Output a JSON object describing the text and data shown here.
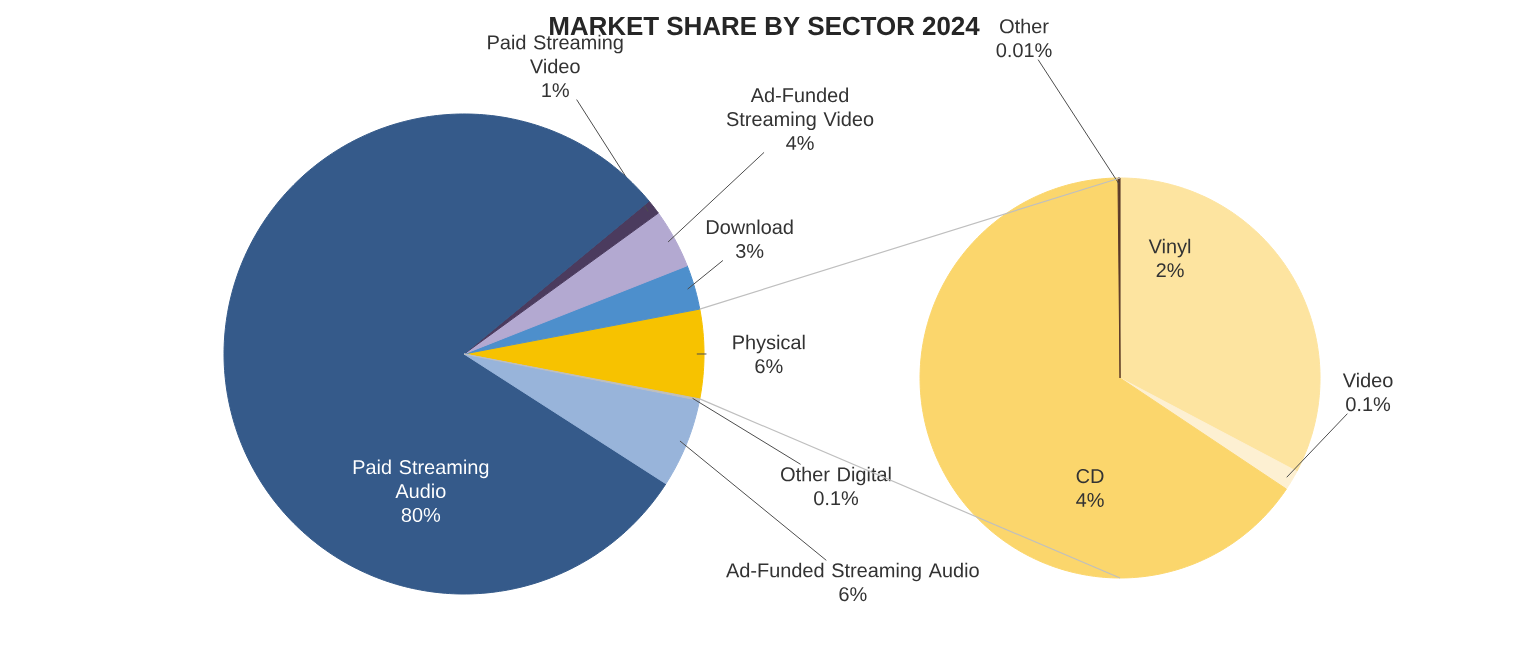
{
  "chart_data": [
    {
      "type": "pie",
      "title": "MARKET SHARE BY SECTOR 2024",
      "categories": [
        "Physical",
        "Download",
        "Ad-Funded Streaming Video",
        "Paid Streaming Video",
        "Paid Streaming Audio",
        "Ad-Funded Streaming Audio",
        "Other Digital"
      ],
      "values": [
        6,
        3,
        4,
        1,
        80,
        6,
        0.1
      ],
      "colors": [
        "#f7c200",
        "#4d8fcc",
        "#b3a9d1",
        "#4b3b5e",
        "#355a8a",
        "#98b4da",
        "#bfbfbf"
      ],
      "value_labels": [
        "6%",
        "3%",
        "4%",
        "1%",
        "80%",
        "6%",
        "0.1%"
      ]
    },
    {
      "type": "pie",
      "categories": [
        "Vinyl",
        "Video",
        "CD",
        "Other"
      ],
      "values": [
        2,
        0.1,
        4,
        0.01
      ],
      "colors": [
        "#fde4a0",
        "#fdf0d2",
        "#fbd66c",
        "#5b3a29"
      ],
      "value_labels": [
        "2%",
        "0.1%",
        "4%",
        "0.01%"
      ]
    }
  ]
}
